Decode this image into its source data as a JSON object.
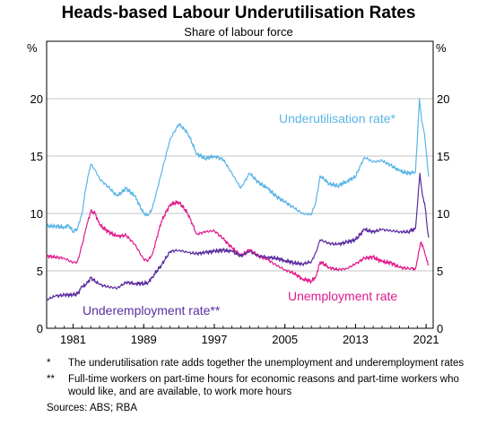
{
  "chart_data": {
    "type": "line",
    "title": "Heads-based Labour Underutilisation Rates",
    "subtitle": "Share of labour force",
    "ylabel_left": "%",
    "ylabel_right": "%",
    "ylim": [
      0,
      25
    ],
    "yticks": [
      0,
      5,
      10,
      15,
      20
    ],
    "xlim": [
      1978.0,
      2021.8
    ],
    "xticks": [
      1981,
      1989,
      1997,
      2005,
      2013,
      2021
    ],
    "xtick_labels": [
      "1981",
      "1989",
      "1997",
      "2005",
      "2013",
      "2021"
    ],
    "series": [
      {
        "name": "Underutilisation rate*",
        "color": "#5ab4e6",
        "points": [
          [
            1978.0,
            8.9
          ],
          [
            1979.0,
            8.9
          ],
          [
            1980.0,
            8.8
          ],
          [
            1980.5,
            9.0
          ],
          [
            1981.0,
            8.4
          ],
          [
            1981.5,
            8.7
          ],
          [
            1982.0,
            10.0
          ],
          [
            1982.5,
            12.5
          ],
          [
            1983.0,
            14.3
          ],
          [
            1983.5,
            13.8
          ],
          [
            1984.0,
            13.0
          ],
          [
            1985.0,
            12.3
          ],
          [
            1986.0,
            11.5
          ],
          [
            1987.0,
            12.2
          ],
          [
            1988.0,
            11.5
          ],
          [
            1989.0,
            10.0
          ],
          [
            1989.5,
            9.8
          ],
          [
            1990.0,
            10.5
          ],
          [
            1991.0,
            13.5
          ],
          [
            1992.0,
            16.5
          ],
          [
            1993.0,
            17.8
          ],
          [
            1994.0,
            17.0
          ],
          [
            1995.0,
            15.2
          ],
          [
            1996.0,
            14.8
          ],
          [
            1997.0,
            15.0
          ],
          [
            1998.0,
            14.7
          ],
          [
            1999.0,
            13.5
          ],
          [
            2000.0,
            12.2
          ],
          [
            2001.0,
            13.5
          ],
          [
            2002.0,
            12.7
          ],
          [
            2003.0,
            12.2
          ],
          [
            2004.0,
            11.5
          ],
          [
            2005.0,
            11.0
          ],
          [
            2006.0,
            10.5
          ],
          [
            2007.0,
            10.0
          ],
          [
            2008.0,
            9.9
          ],
          [
            2008.5,
            11.0
          ],
          [
            2009.0,
            13.3
          ],
          [
            2010.0,
            12.6
          ],
          [
            2011.0,
            12.4
          ],
          [
            2012.0,
            12.8
          ],
          [
            2013.0,
            13.2
          ],
          [
            2014.0,
            14.9
          ],
          [
            2015.0,
            14.5
          ],
          [
            2016.0,
            14.6
          ],
          [
            2017.0,
            14.2
          ],
          [
            2018.0,
            13.7
          ],
          [
            2019.0,
            13.5
          ],
          [
            2019.8,
            13.6
          ],
          [
            2020.25,
            20.0
          ],
          [
            2020.5,
            18.0
          ],
          [
            2020.8,
            17.0
          ],
          [
            2021.0,
            15.5
          ],
          [
            2021.3,
            13.2
          ]
        ]
      },
      {
        "name": "Unemployment rate",
        "color": "#e11b8d",
        "points": [
          [
            1978.0,
            6.3
          ],
          [
            1979.0,
            6.2
          ],
          [
            1980.0,
            6.1
          ],
          [
            1981.0,
            5.7
          ],
          [
            1981.5,
            5.8
          ],
          [
            1982.0,
            7.2
          ],
          [
            1982.5,
            8.8
          ],
          [
            1983.0,
            10.2
          ],
          [
            1983.5,
            10.0
          ],
          [
            1984.0,
            9.0
          ],
          [
            1985.0,
            8.4
          ],
          [
            1986.0,
            8.0
          ],
          [
            1987.0,
            8.1
          ],
          [
            1988.0,
            7.3
          ],
          [
            1989.0,
            6.0
          ],
          [
            1989.5,
            5.9
          ],
          [
            1990.0,
            6.5
          ],
          [
            1991.0,
            9.3
          ],
          [
            1992.0,
            10.8
          ],
          [
            1993.0,
            11.0
          ],
          [
            1994.0,
            10.0
          ],
          [
            1995.0,
            8.2
          ],
          [
            1996.0,
            8.4
          ],
          [
            1997.0,
            8.5
          ],
          [
            1998.0,
            7.8
          ],
          [
            1999.0,
            7.0
          ],
          [
            2000.0,
            6.3
          ],
          [
            2001.0,
            6.8
          ],
          [
            2002.0,
            6.3
          ],
          [
            2003.0,
            6.0
          ],
          [
            2004.0,
            5.5
          ],
          [
            2005.0,
            5.1
          ],
          [
            2006.0,
            4.8
          ],
          [
            2007.0,
            4.3
          ],
          [
            2008.0,
            4.1
          ],
          [
            2008.5,
            4.5
          ],
          [
            2009.0,
            5.8
          ],
          [
            2010.0,
            5.3
          ],
          [
            2011.0,
            5.1
          ],
          [
            2012.0,
            5.2
          ],
          [
            2013.0,
            5.6
          ],
          [
            2014.0,
            6.1
          ],
          [
            2015.0,
            6.2
          ],
          [
            2016.0,
            5.8
          ],
          [
            2017.0,
            5.7
          ],
          [
            2018.0,
            5.3
          ],
          [
            2019.0,
            5.2
          ],
          [
            2019.8,
            5.2
          ],
          [
            2020.4,
            7.5
          ],
          [
            2020.7,
            6.9
          ],
          [
            2021.0,
            6.2
          ],
          [
            2021.3,
            5.5
          ]
        ]
      },
      {
        "name": "Underemployment rate**",
        "color": "#5b2d9f",
        "points": [
          [
            1978.0,
            2.5
          ],
          [
            1979.0,
            2.8
          ],
          [
            1980.0,
            2.9
          ],
          [
            1981.0,
            2.9
          ],
          [
            1981.5,
            3.0
          ],
          [
            1982.0,
            3.6
          ],
          [
            1982.5,
            3.8
          ],
          [
            1983.0,
            4.4
          ],
          [
            1984.0,
            3.8
          ],
          [
            1985.0,
            3.6
          ],
          [
            1986.0,
            3.5
          ],
          [
            1987.0,
            4.0
          ],
          [
            1988.0,
            3.9
          ],
          [
            1989.0,
            3.9
          ],
          [
            1989.5,
            4.0
          ],
          [
            1990.0,
            4.5
          ],
          [
            1991.0,
            5.5
          ],
          [
            1992.0,
            6.7
          ],
          [
            1993.0,
            6.8
          ],
          [
            1994.0,
            6.6
          ],
          [
            1995.0,
            6.5
          ],
          [
            1996.0,
            6.6
          ],
          [
            1997.0,
            6.7
          ],
          [
            1998.0,
            6.8
          ],
          [
            1999.0,
            6.7
          ],
          [
            2000.0,
            6.3
          ],
          [
            2001.0,
            6.7
          ],
          [
            2002.0,
            6.3
          ],
          [
            2003.0,
            6.2
          ],
          [
            2004.0,
            6.1
          ],
          [
            2005.0,
            5.9
          ],
          [
            2006.0,
            5.7
          ],
          [
            2007.0,
            5.6
          ],
          [
            2008.0,
            5.8
          ],
          [
            2008.5,
            6.6
          ],
          [
            2009.0,
            7.7
          ],
          [
            2010.0,
            7.4
          ],
          [
            2011.0,
            7.3
          ],
          [
            2012.0,
            7.5
          ],
          [
            2013.0,
            7.7
          ],
          [
            2014.0,
            8.6
          ],
          [
            2015.0,
            8.4
          ],
          [
            2016.0,
            8.6
          ],
          [
            2017.0,
            8.5
          ],
          [
            2018.0,
            8.4
          ],
          [
            2019.0,
            8.4
          ],
          [
            2019.8,
            8.7
          ],
          [
            2020.3,
            13.5
          ],
          [
            2020.6,
            11.5
          ],
          [
            2020.9,
            10.5
          ],
          [
            2021.2,
            8.3
          ],
          [
            2021.3,
            7.9
          ]
        ]
      }
    ],
    "annotations": [
      {
        "text": "Underutilisation rate*",
        "color": "#5ab4e6"
      },
      {
        "text": "Unemployment rate",
        "color": "#e11b8d"
      },
      {
        "text": "Underemployment rate**",
        "color": "#5b2d9f"
      }
    ],
    "grid": true
  },
  "notes": [
    {
      "mark": "*",
      "text": "The underutilisation rate adds together the unemployment and underemployment rates"
    },
    {
      "mark": "**",
      "text": "Full-time workers on part-time hours for economic reasons and part-time workers who would like, and are available, to work more hours"
    }
  ],
  "sources": "Sources: ABS; RBA"
}
